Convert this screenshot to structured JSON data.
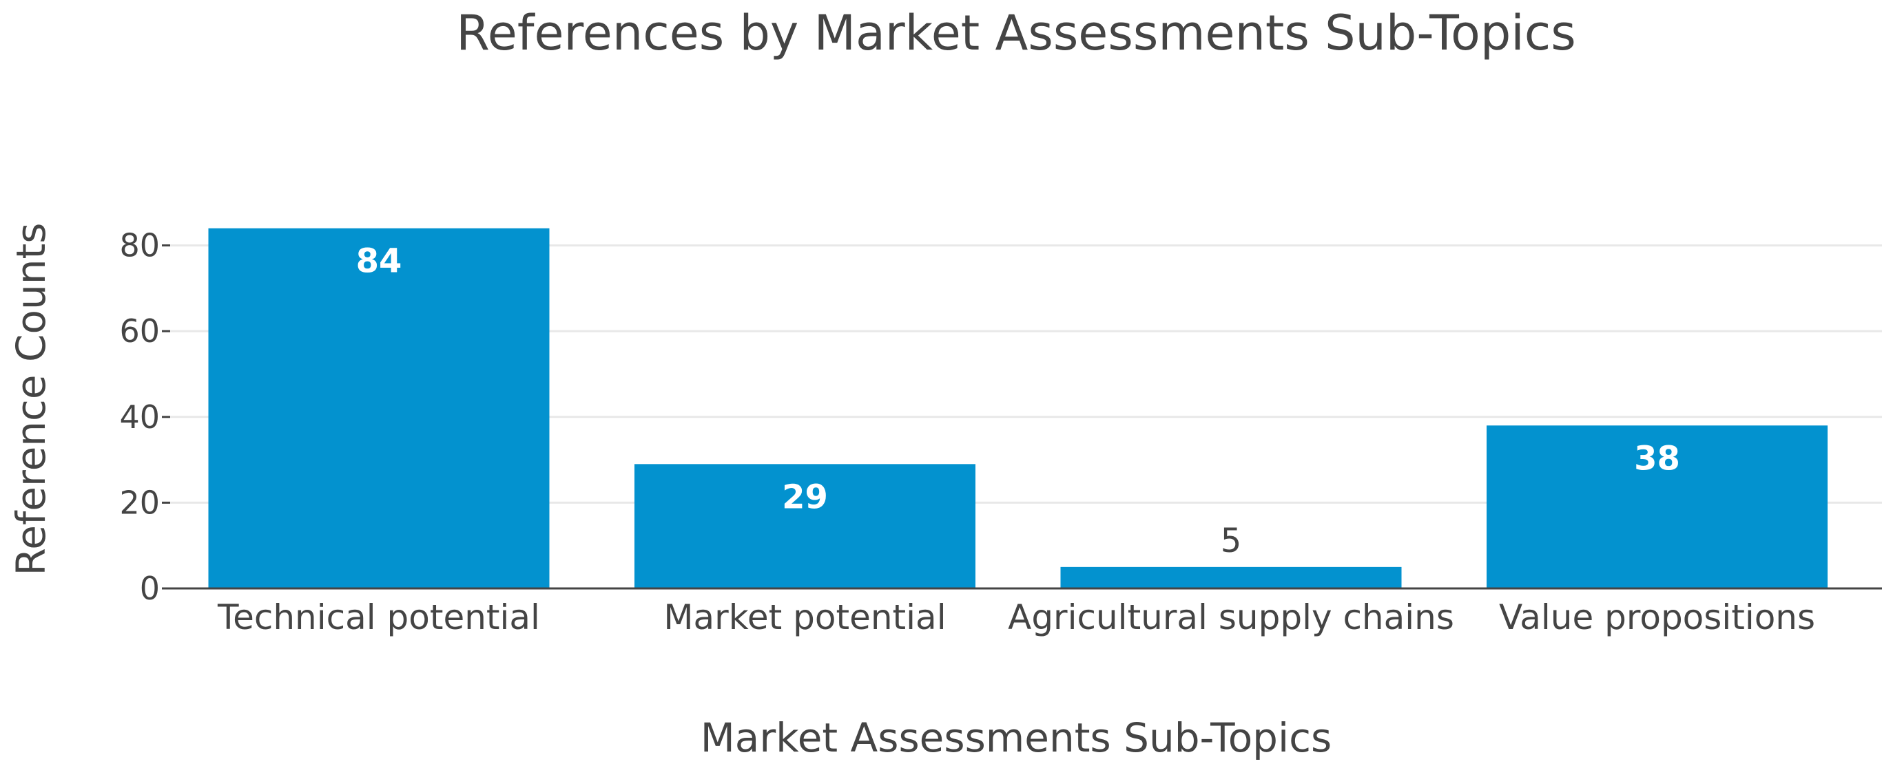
{
  "chart_data": {
    "type": "bar",
    "title": "References by Market Assessments Sub-Topics",
    "xlabel": "Market Assessments Sub-Topics",
    "ylabel": "Reference Counts",
    "categories": [
      "Technical potential",
      "Market potential",
      "Agricultural supply chains",
      "Value propositions"
    ],
    "values": [
      84,
      29,
      5,
      38
    ],
    "data_labels": [
      "84",
      "29",
      "5",
      "38"
    ],
    "ylim": [
      0,
      88
    ],
    "yticks": [
      0,
      20,
      40,
      60,
      80
    ],
    "ytick_labels": [
      "0",
      "20",
      "40",
      "60",
      "80"
    ],
    "grid": true,
    "bar_color": "#0392cf",
    "inside_label_color": "#ffffff",
    "outside_label_color": "#444444",
    "text_color": "#444444"
  }
}
